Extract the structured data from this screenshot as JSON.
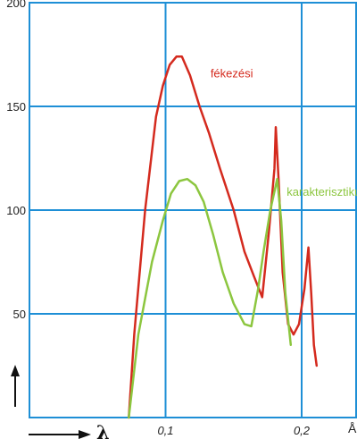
{
  "chart_data": {
    "type": "line",
    "xlabel": "λ",
    "x_unit": "Å",
    "xlim": [
      0.0,
      0.24
    ],
    "ylim": [
      0,
      200
    ],
    "yticks": [
      50,
      100,
      150,
      200
    ],
    "xticks": [
      0.1,
      0.2
    ],
    "x_tick_labels": [
      "0,1",
      "0,2"
    ],
    "y_tick_labels": [
      "50",
      "100",
      "150",
      "200"
    ],
    "grid": true,
    "colors": {
      "grid": "#1e8fd6",
      "fekezesi": "#d42a1e",
      "karakterisztikus": "#8cc63f",
      "axis_arrow": "#111111"
    },
    "series": [
      {
        "name": "fékezési",
        "color": "#d42a1e",
        "points": [
          [
            0.073,
            0
          ],
          [
            0.077,
            40
          ],
          [
            0.085,
            100
          ],
          [
            0.093,
            145
          ],
          [
            0.098,
            160
          ],
          [
            0.103,
            170
          ],
          [
            0.108,
            174
          ],
          [
            0.112,
            174
          ],
          [
            0.118,
            165
          ],
          [
            0.125,
            150
          ],
          [
            0.132,
            137
          ],
          [
            0.14,
            120
          ],
          [
            0.15,
            100
          ],
          [
            0.158,
            80
          ],
          [
            0.165,
            68
          ],
          [
            0.171,
            58
          ],
          [
            0.176,
            90
          ],
          [
            0.18,
            120
          ],
          [
            0.181,
            140
          ],
          [
            0.183,
            115
          ],
          [
            0.186,
            70
          ],
          [
            0.19,
            45
          ],
          [
            0.194,
            40
          ],
          [
            0.198,
            45
          ],
          [
            0.202,
            62
          ],
          [
            0.205,
            82
          ],
          [
            0.207,
            60
          ],
          [
            0.209,
            35
          ],
          [
            0.211,
            25
          ]
        ]
      },
      {
        "name": "karakterisztikus",
        "color": "#8cc63f",
        "points": [
          [
            0.073,
            0
          ],
          [
            0.08,
            40
          ],
          [
            0.09,
            75
          ],
          [
            0.098,
            95
          ],
          [
            0.104,
            108
          ],
          [
            0.11,
            114
          ],
          [
            0.116,
            115
          ],
          [
            0.122,
            112
          ],
          [
            0.128,
            104
          ],
          [
            0.135,
            88
          ],
          [
            0.142,
            70
          ],
          [
            0.15,
            55
          ],
          [
            0.158,
            45
          ],
          [
            0.163,
            44
          ],
          [
            0.168,
            62
          ],
          [
            0.172,
            80
          ],
          [
            0.177,
            100
          ],
          [
            0.182,
            115
          ],
          [
            0.185,
            95
          ],
          [
            0.188,
            60
          ],
          [
            0.192,
            35
          ]
        ]
      }
    ]
  }
}
